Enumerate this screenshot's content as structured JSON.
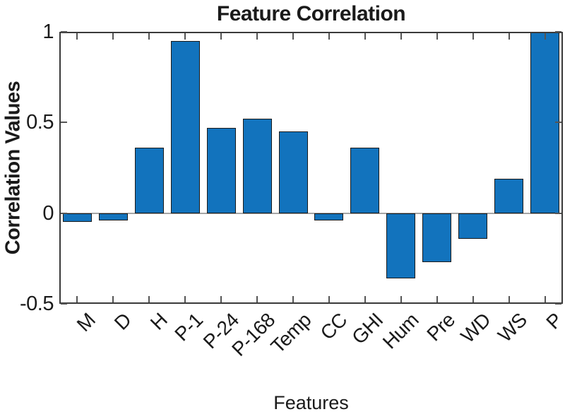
{
  "figure": {
    "title": "Feature Correlation",
    "xlabel": "Features",
    "ylabel": "Correlation Values"
  },
  "chart_data": {
    "type": "bar",
    "title": "Feature Correlation",
    "xlabel": "Features",
    "ylabel": "Correlation Values",
    "categories": [
      "M",
      "D",
      "H",
      "P-1",
      "P-24",
      "P-168",
      "Temp",
      "CC",
      "GHI",
      "Hum",
      "Pre",
      "WD",
      "WS",
      "P"
    ],
    "values": [
      -0.05,
      -0.04,
      0.36,
      0.95,
      0.47,
      0.52,
      0.45,
      -0.04,
      0.36,
      -0.36,
      -0.27,
      -0.14,
      0.19,
      1.0
    ],
    "ylim": [
      -0.5,
      1
    ],
    "yticks": [
      -0.5,
      0,
      0.5,
      1
    ],
    "ytick_labels": [
      "-0.5",
      "0",
      "0.5",
      "1"
    ],
    "x_tick_rotation_deg": -45,
    "grid": false,
    "box": true,
    "colors": {
      "bar_fill": "#1273BD",
      "bar_edge": "#1A1A1A",
      "axis": "#3A3A3A",
      "tick": "#555555",
      "zero_line": "#A6A6A6",
      "text": "#1A1A1A",
      "background": "#FFFFFF"
    }
  }
}
